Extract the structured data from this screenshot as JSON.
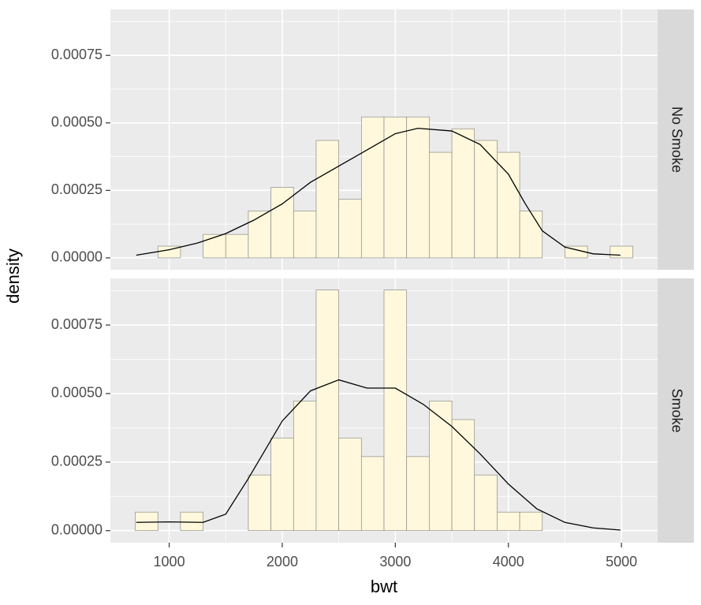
{
  "chart_data": {
    "type": "histogram",
    "xlabel": "bwt",
    "ylabel": "density",
    "bins": [
      700,
      900,
      1100,
      1300,
      1500,
      1700,
      1900,
      2100,
      2300,
      2500,
      2700,
      2900,
      3100,
      3300,
      3500,
      3700,
      3900,
      4100,
      4300,
      4500,
      4700,
      4900,
      5100
    ],
    "xlim": [
      480,
      5320
    ],
    "xticks": [
      1000,
      2000,
      3000,
      4000,
      5000
    ],
    "xminor": [
      1500,
      2500,
      3500,
      4500
    ],
    "ylim": [
      -4.4e-05,
      0.00092
    ],
    "yticks": [
      {
        "value": 0,
        "label": "0.00000"
      },
      {
        "value": 0.00025,
        "label": "0.00025"
      },
      {
        "value": 0.0005,
        "label": "0.00050"
      },
      {
        "value": 0.00075,
        "label": "0.00075"
      }
    ],
    "yminor": [
      0.000125,
      0.000375,
      0.000625,
      0.000875
    ],
    "grid": true,
    "bar_color": "#FFF8DC",
    "bar_edge": "#8C8C8C",
    "line_color": "#000000",
    "facets": [
      {
        "label": "No Smoke",
        "values": [
          0,
          4.35e-05,
          0,
          8.7e-05,
          8.7e-05,
          0.000174,
          0.000261,
          0.000174,
          0.000435,
          0.000217,
          0.000522,
          0.000522,
          0.000522,
          0.000391,
          0.000478,
          0.000435,
          0.000391,
          0.000174,
          0,
          4.35e-05,
          0,
          4.35e-05
        ],
        "density": {
          "x": [
            709,
            1000,
            1250,
            1500,
            1750,
            2000,
            2250,
            2500,
            2750,
            3000,
            3200,
            3500,
            3750,
            4000,
            4150,
            4300,
            4500,
            4750,
            4991
          ],
          "y": [
            1e-05,
            3e-05,
            5.5e-05,
            9e-05,
            0.00014,
            0.0002,
            0.00028,
            0.00034,
            0.0004,
            0.00046,
            0.00048,
            0.00047,
            0.00042,
            0.00031,
            0.0002,
            0.0001,
            4e-05,
            1.5e-05,
            1e-05
          ]
        }
      },
      {
        "label": "Smoke",
        "values": [
          6.76e-05,
          0,
          6.76e-05,
          0,
          0,
          0.000203,
          0.000338,
          0.000473,
          0.000878,
          0.000338,
          0.00027,
          0.000878,
          0.00027,
          0.000473,
          0.000405,
          0.000203,
          6.76e-05,
          6.76e-05,
          0,
          0,
          0,
          0
        ],
        "density": {
          "x": [
            709,
            1000,
            1300,
            1500,
            1700,
            2000,
            2250,
            2500,
            2750,
            3000,
            3250,
            3500,
            3750,
            4000,
            4250,
            4500,
            4750,
            4991
          ],
          "y": [
            3e-05,
            3.2e-05,
            3e-05,
            6e-05,
            0.00019,
            0.0004,
            0.00051,
            0.00055,
            0.00052,
            0.00052,
            0.00046,
            0.00038,
            0.00028,
            0.00017,
            8e-05,
            3e-05,
            1e-05,
            2e-06
          ]
        }
      }
    ]
  }
}
